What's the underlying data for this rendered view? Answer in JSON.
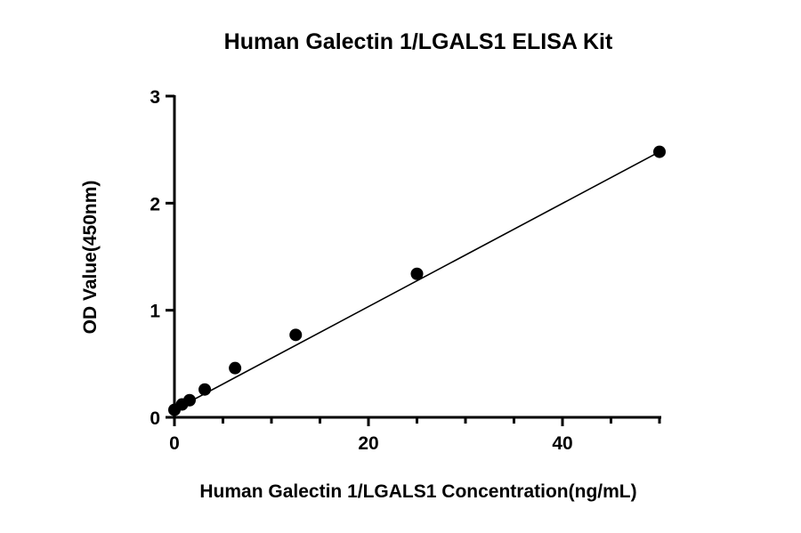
{
  "chart_data": {
    "type": "scatter",
    "title": "Human Galectin 1/LGALS1 ELISA Kit",
    "xlabel": "Human Galectin 1/LGALS1 Concentration(ng/mL)",
    "ylabel": "OD Value(450nm)",
    "xlim": [
      0,
      50
    ],
    "ylim": [
      0,
      3
    ],
    "xticks": [
      0,
      20,
      40
    ],
    "yticks": [
      0,
      1,
      2,
      3
    ],
    "grid": false,
    "points": [
      {
        "x": 0,
        "y": 0.07
      },
      {
        "x": 0.78,
        "y": 0.12
      },
      {
        "x": 1.56,
        "y": 0.16
      },
      {
        "x": 3.125,
        "y": 0.26
      },
      {
        "x": 6.25,
        "y": 0.46
      },
      {
        "x": 12.5,
        "y": 0.77
      },
      {
        "x": 25,
        "y": 1.34
      },
      {
        "x": 50,
        "y": 2.48
      }
    ],
    "fit_line": {
      "x": [
        0,
        50
      ],
      "y": [
        0.07,
        2.48
      ]
    },
    "colors": {
      "marker": "#000000",
      "line": "#000000"
    }
  }
}
